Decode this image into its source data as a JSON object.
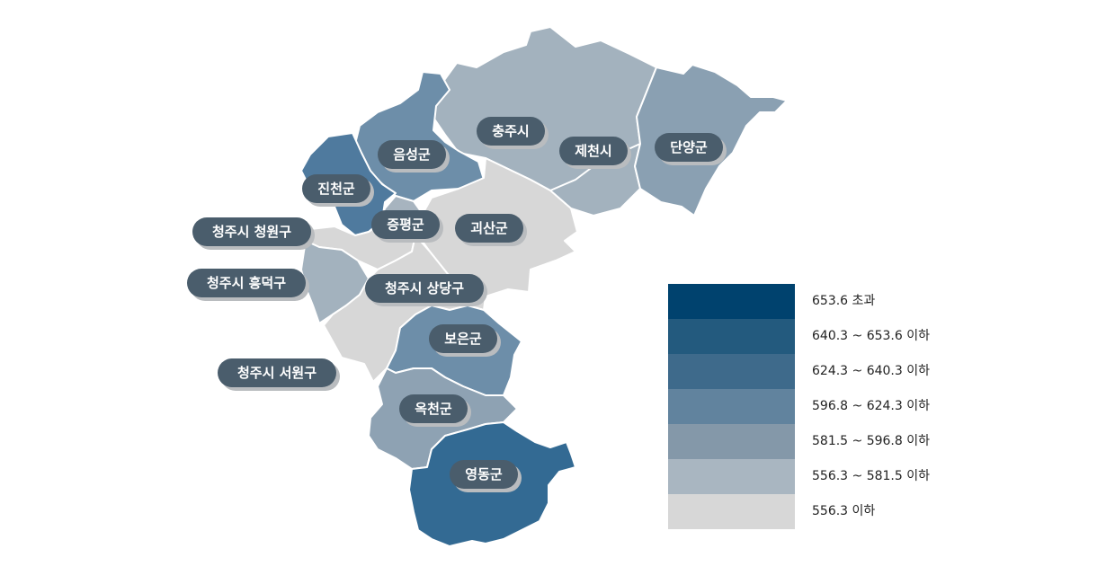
{
  "colors": {
    "class_1": "#00426e",
    "class_2": "#235a7e",
    "class_3": "#3e6a8b",
    "class_4": "#61839e",
    "class_5": "#8498a9",
    "class_6": "#a9b6c1",
    "class_7": "#d7d7d7",
    "label_bg": "#4a5d6c"
  },
  "regions": [
    {
      "id": "chungju",
      "name": "충주시",
      "color": "#a3b2be"
    },
    {
      "id": "jecheon",
      "name": "제천시",
      "color": "#a3b2be"
    },
    {
      "id": "danyang",
      "name": "단양군",
      "color": "#8aa0b2"
    },
    {
      "id": "eumseong",
      "name": "음성군",
      "color": "#6d8ea9"
    },
    {
      "id": "jincheon",
      "name": "진천군",
      "color": "#4f7a9e"
    },
    {
      "id": "jeungpyeong",
      "name": "증평군",
      "color": "#a7b4bf"
    },
    {
      "id": "goesan",
      "name": "괴산군",
      "color": "#d7d7d7"
    },
    {
      "id": "cheongwon",
      "name": "청주시 청원구",
      "color": "#d7d7d7"
    },
    {
      "id": "heungdeok",
      "name": "청주시 흥덕구",
      "color": "#a3b2be"
    },
    {
      "id": "sangdang",
      "name": "청주시 상당구",
      "color": "#d7d7d7"
    },
    {
      "id": "seowon",
      "name": "청주시 서원구",
      "color": "#d7d7d7"
    },
    {
      "id": "boeun",
      "name": "보은군",
      "color": "#6d8ea9"
    },
    {
      "id": "okcheon",
      "name": "옥천군",
      "color": "#8ea2b3"
    },
    {
      "id": "yeongdong",
      "name": "영동군",
      "color": "#336a93"
    }
  ],
  "legend": [
    {
      "label": "653.6 초과",
      "color": "#00426e"
    },
    {
      "label": "640.3 ~ 653.6 이하",
      "color": "#235a7e"
    },
    {
      "label": "624.3 ~ 640.3 이하",
      "color": "#3e6a8b"
    },
    {
      "label": "596.8 ~ 624.3 이하",
      "color": "#61839e"
    },
    {
      "label": "581.5 ~ 596.8 이하",
      "color": "#8498a9"
    },
    {
      "label": "556.3 ~ 581.5 이하",
      "color": "#a9b6c1"
    },
    {
      "label": "556.3 이하",
      "color": "#d7d7d7"
    }
  ]
}
